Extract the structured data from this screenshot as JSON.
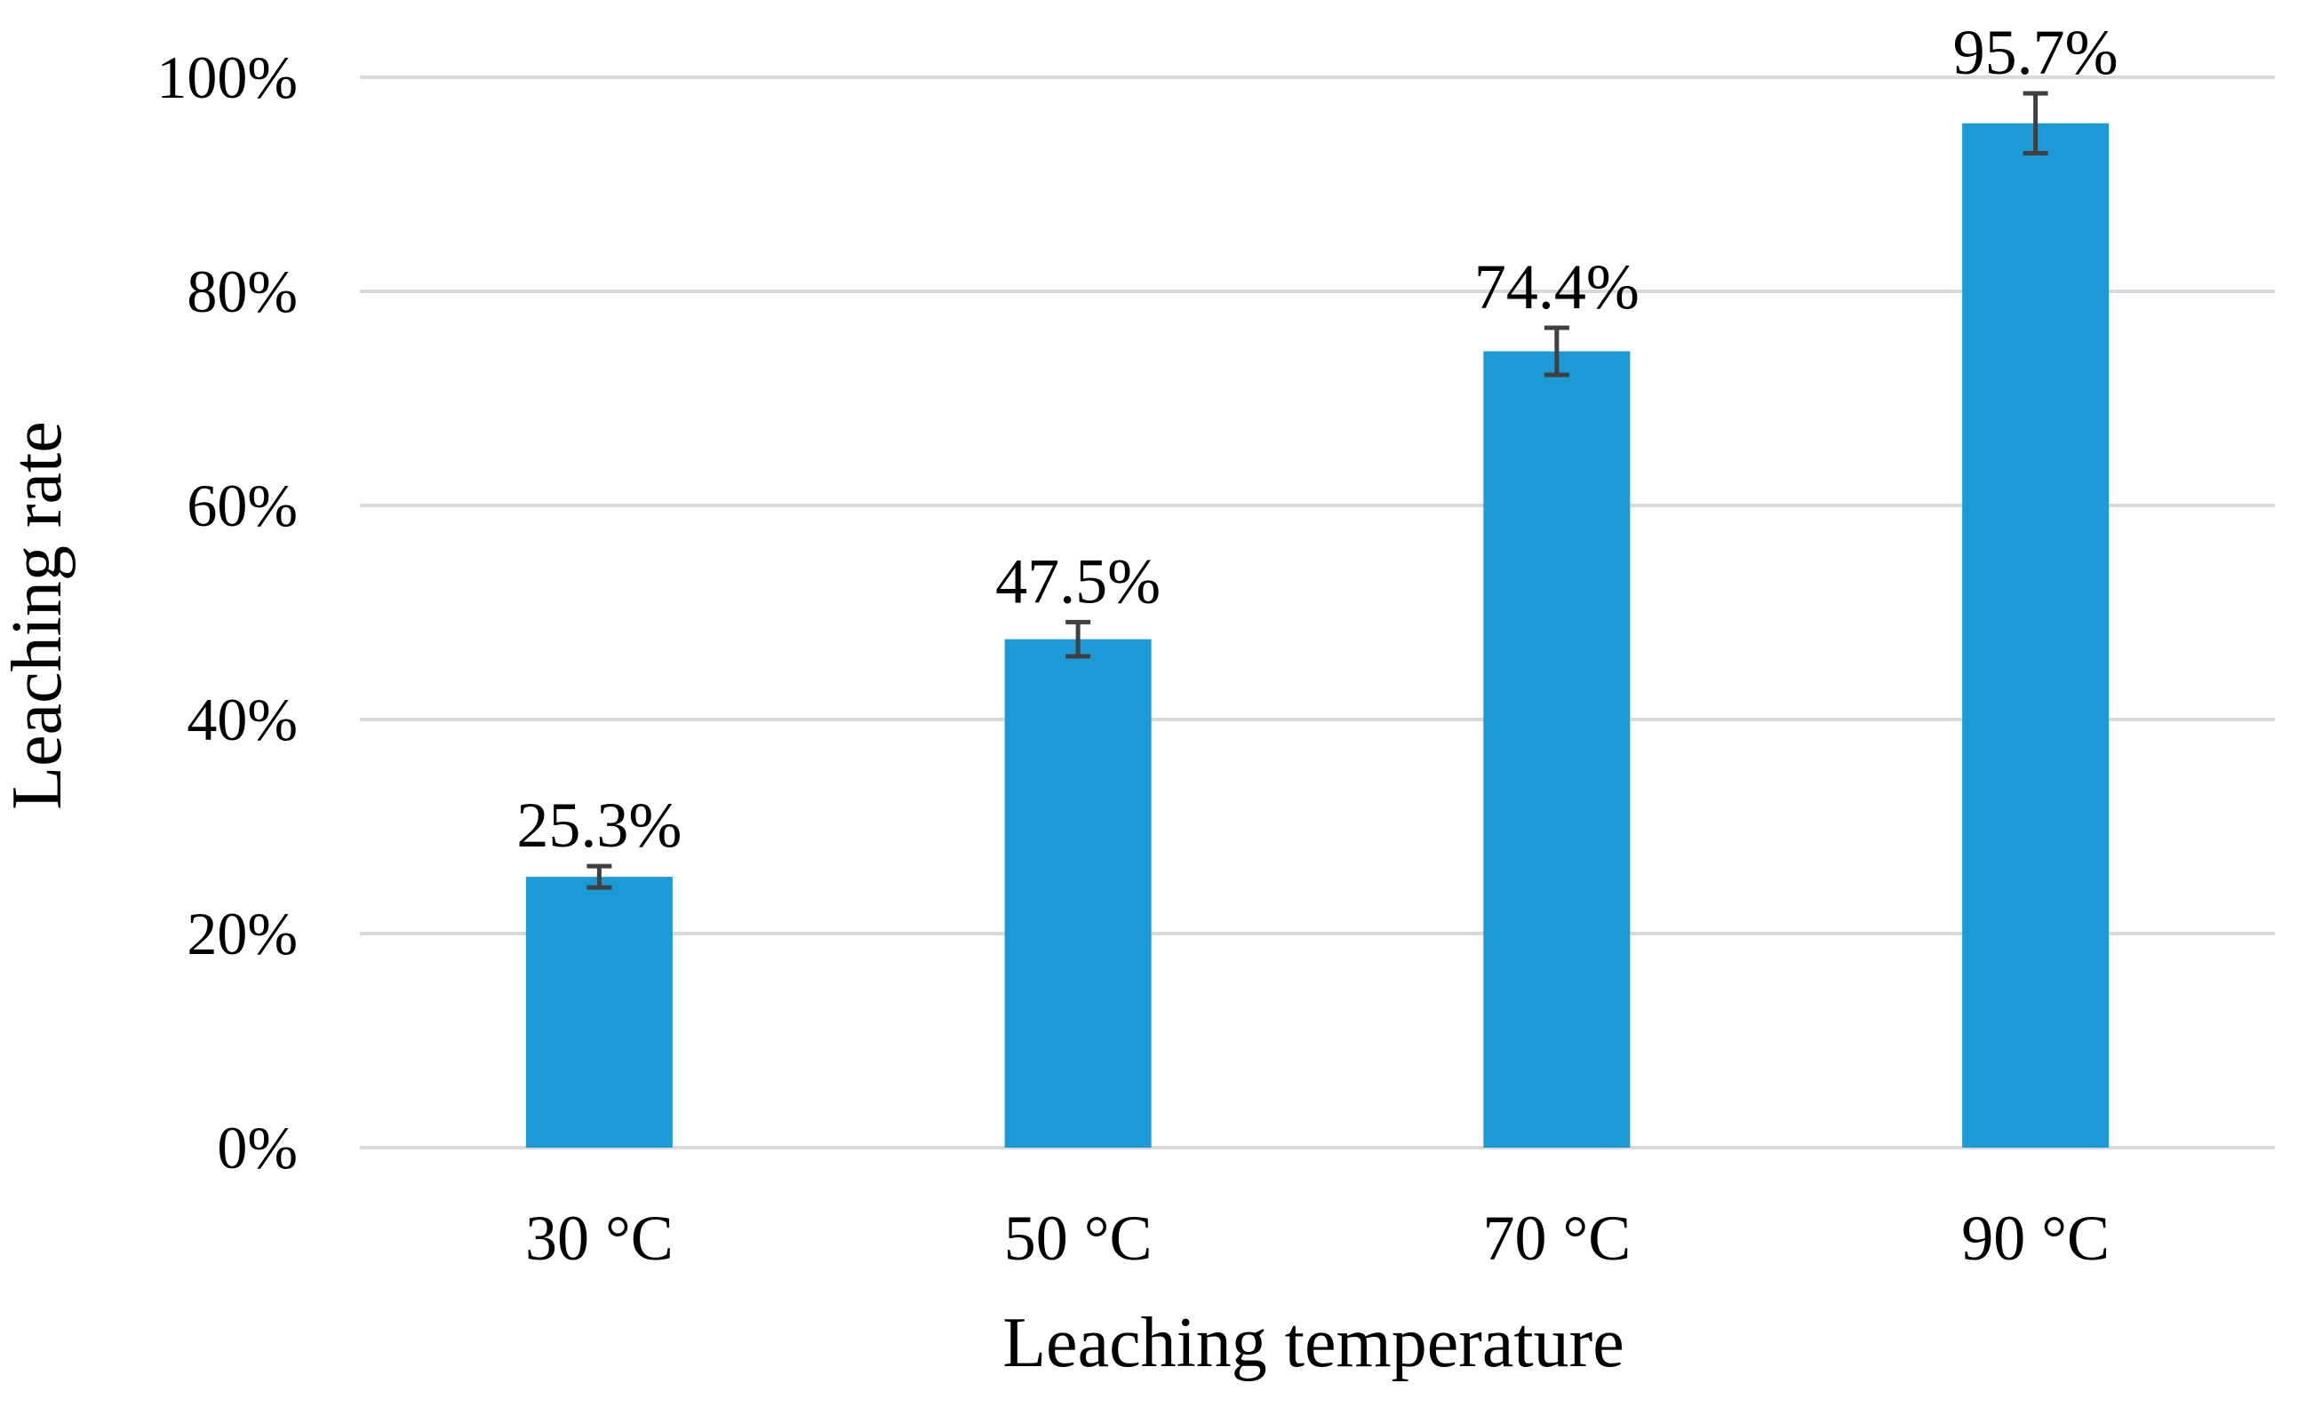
{
  "chart_data": {
    "type": "bar",
    "categories": [
      "30 °C",
      "50 °C",
      "70 °C",
      "90 °C"
    ],
    "values": [
      25.3,
      47.5,
      74.4,
      95.7
    ],
    "errors": [
      1.0,
      1.6,
      2.2,
      2.8
    ],
    "data_labels": [
      "25.3%",
      "47.5%",
      "74.4%",
      "95.7%"
    ],
    "xlabel": "Leaching temperature",
    "ylabel": "Leaching rate",
    "ylim": [
      0,
      100
    ],
    "yticks": [
      0,
      20,
      40,
      60,
      80,
      100
    ],
    "ytick_labels": [
      "0%",
      "20%",
      "40%",
      "60%",
      "80%",
      "100%"
    ],
    "grid": true,
    "legend": "none",
    "bar_color": "#1b9ad6",
    "error_bar_color": "#404040",
    "grid_color": "#d9d9d9"
  }
}
